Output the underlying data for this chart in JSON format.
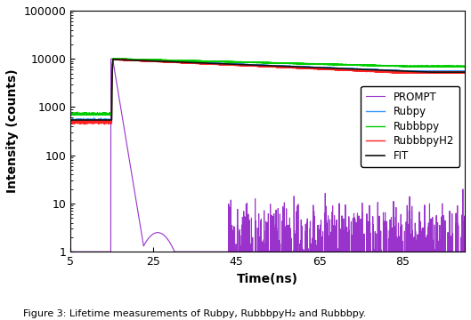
{
  "title": "",
  "xlabel": "Time(ns)",
  "ylabel": "Intensity (counts)",
  "xlim": [
    5,
    100
  ],
  "ylim_log": [
    1,
    100000
  ],
  "xticks": [
    5,
    25,
    45,
    65,
    85
  ],
  "xticklabels": [
    "5",
    "25",
    "45",
    "65",
    "85"
  ],
  "legend_labels": [
    "PROMPT",
    "Rubpy",
    "Rubbbpy",
    "RubbbpyH2",
    "FIT"
  ],
  "legend_colors": [
    "#9933cc",
    "#3399ff",
    "#00cc00",
    "#ff2222",
    "#111111"
  ],
  "line_widths": [
    0.8,
    1.0,
    1.0,
    1.0,
    1.2
  ],
  "background_color": "#ffffff",
  "caption": "Figure 3: Lifetime measurements of Rubpy, RubbbpyH₂ and Rubbbpy.",
  "tick_fontsize": 9,
  "label_fontsize": 10
}
